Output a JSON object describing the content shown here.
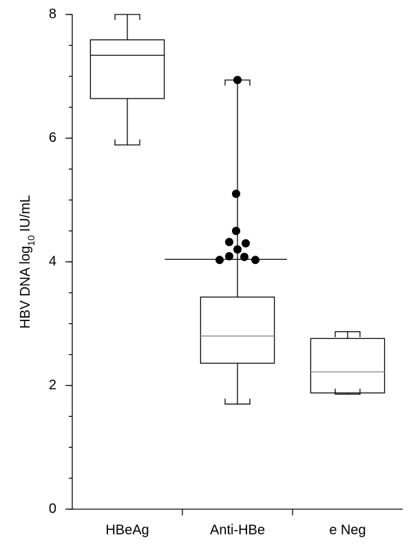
{
  "chart_data": {
    "type": "box",
    "ylabel_parts": [
      "HBV DNA log",
      "10",
      "IU/mL"
    ],
    "categories": [
      "HBeAg",
      "Anti-HBe",
      "e Neg"
    ],
    "ylim": [
      0,
      8
    ],
    "yticks": [
      0,
      2,
      4,
      6,
      8
    ],
    "yminor_step": 0.5,
    "boxes": [
      {
        "whisker_low": 5.89,
        "q1": 6.64,
        "median": 7.34,
        "q3": 7.59,
        "whisker_high": 8.0,
        "median_color": "#000000"
      },
      {
        "whisker_low": 1.7,
        "q1": 2.36,
        "median": 2.8,
        "q3": 3.43,
        "whisker_high": 6.94,
        "median_color": "#888888",
        "line": 4.04,
        "outliers": [
          6.94,
          5.1,
          4.5,
          4.32,
          4.3,
          4.2,
          4.09,
          4.08,
          4.03,
          4.03
        ]
      },
      {
        "whisker_low": 1.86,
        "q1": 1.88,
        "median": 2.22,
        "q3": 2.76,
        "whisker_high": 2.87,
        "median_color": "#888888"
      }
    ]
  }
}
